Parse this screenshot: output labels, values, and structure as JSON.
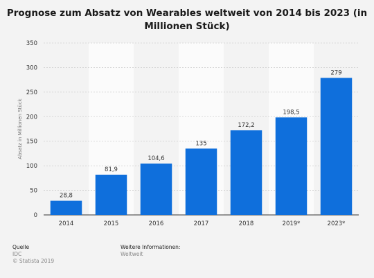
{
  "chart_data": {
    "type": "bar",
    "title_lines": [
      "Prognose zum Absatz von Wearables weltweit von 2014 bis 2023 (in",
      "Millionen Stück)"
    ],
    "categories": [
      "2014",
      "2015",
      "2016",
      "2017",
      "2018",
      "2019*",
      "2023*"
    ],
    "values": [
      28.8,
      81.9,
      104.6,
      135,
      172.2,
      198.5,
      279
    ],
    "value_labels": [
      "28,8",
      "81,9",
      "104,6",
      "135",
      "172,2",
      "198,5",
      "279"
    ],
    "ylabel": "Absatz in Millionen Stück",
    "xlabel": "",
    "ylim": [
      0,
      350
    ],
    "yticks": [
      0,
      50,
      100,
      150,
      200,
      250,
      300,
      350
    ],
    "grid": true,
    "bar_color": "#0f6fdc"
  },
  "footer": {
    "source_heading": "Quelle",
    "source_value": "IDC",
    "copyright": "© Statista 2019",
    "info_heading": "Weitere Informationen:",
    "info_value": "Weltweit"
  }
}
